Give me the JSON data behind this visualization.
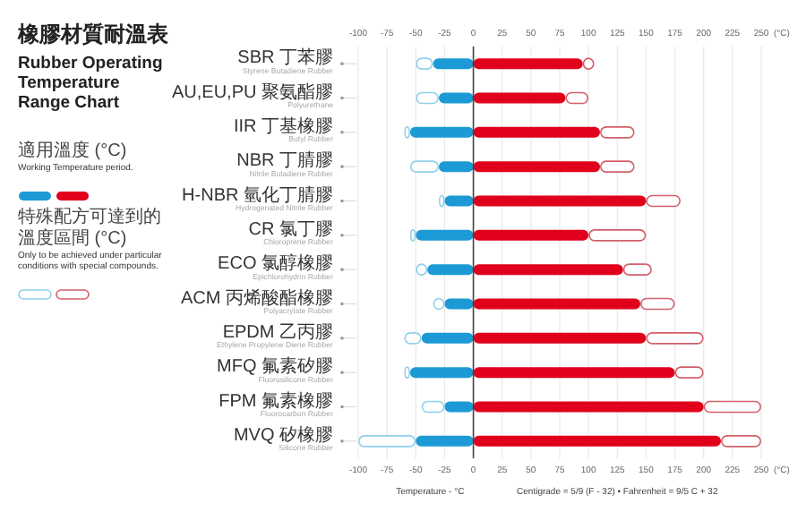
{
  "chart_data": {
    "type": "bar",
    "orientation": "horizontal",
    "stacked": true,
    "title": "橡膠材質耐溫表",
    "subtitle": "Rubber Operating Temperature Range Chart",
    "xlabel": "Temperature - °C",
    "categories": [
      "SBR 丁苯膠\nStyrene Butadiene Rubber",
      "AU,EU,PU 聚氨酯膠\nPolyurethane",
      "IIR 丁基橡膠\nButyl Rubber",
      "NBR 丁腈膠\nNitrile Butadiene Rubber",
      "H-NBR 氫化丁腈膠\nHydrogenated Nitrile Rubber",
      "CR 氯丁膠\nChloroprene Rubber",
      "ECO 氯醇橡膠\nEpichlorohydrin Rubber",
      "ACM 丙烯酸酯橡膠\nPolyacrylate Rubber",
      "EPDM 乙丙膠\nEthylene Propylene Diene Rubber",
      "MFQ 氟素矽膠\nFluorosilicone Rubber",
      "FPM 氟素橡膠\nFluorocarbon Rubber",
      "MVQ 矽橡膠\nSilicone Rubber"
    ],
    "series": [
      {
        "color": "#1c9ad6",
        "values": [
          -35,
          -30,
          -55,
          -30,
          -25,
          -50,
          -40,
          -25,
          -45,
          -55,
          -25,
          -50
        ]
      },
      {
        "color": "#8fd0ea",
        "values": [
          -15,
          -20,
          -5,
          -25,
          -5,
          -5,
          -10,
          -10,
          -15,
          -5,
          -20,
          -50
        ]
      },
      {
        "color": "#e0001b",
        "values": [
          95,
          80,
          110,
          110,
          150,
          100,
          130,
          145,
          150,
          175,
          200,
          215
        ]
      },
      {
        "color": "#d2606a",
        "values": [
          10,
          20,
          30,
          30,
          30,
          50,
          25,
          30,
          50,
          25,
          50,
          35
        ]
      }
    ],
    "xlim": [
      -100,
      250
    ],
    "xticks": [
      -100,
      -75,
      -50,
      -25,
      0,
      25,
      50,
      75,
      100,
      125,
      150,
      175,
      200,
      225,
      250
    ],
    "x2lim": [
      -100,
      250
    ],
    "x2ticks": [
      -100,
      -75,
      -50,
      -25,
      0,
      25,
      50,
      75,
      100,
      125,
      150,
      175,
      200,
      225,
      250
    ],
    "grid": "x",
    "annotations": [
      "(°C)",
      "(°C)",
      "適用溫度 (°C)",
      "Working Temperature period.",
      "特殊配方可達到的溫度區間 (°C)",
      "Only to be achieved under particular conditions with special compounds.",
      "Centigrade = 5/9 (F - 32)  •  Fahrenheit = 9/5 C + 32"
    ]
  }
}
